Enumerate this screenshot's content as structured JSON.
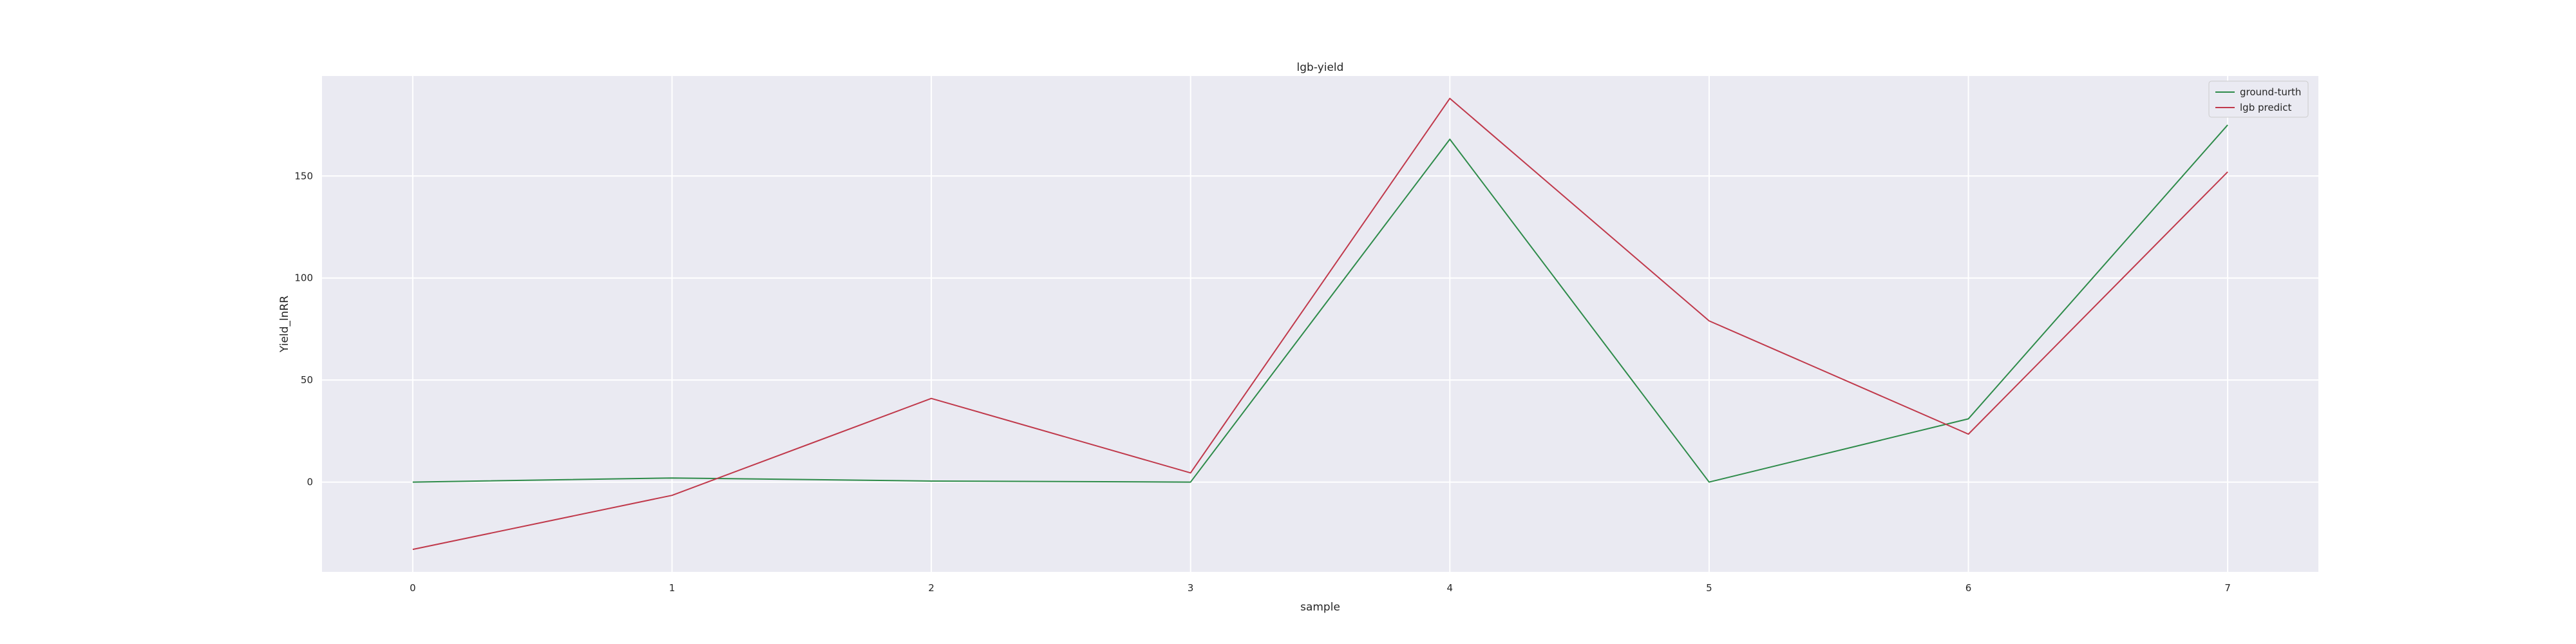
{
  "chart_data": {
    "type": "line",
    "title": "lgb-yield",
    "xlabel": "sample",
    "ylabel": "Yield_lnRR",
    "x": [
      0,
      1,
      2,
      3,
      4,
      5,
      6,
      7
    ],
    "xlim": [
      -0.35,
      7.35
    ],
    "ylim": [
      -44,
      199
    ],
    "xticks": [
      0,
      1,
      2,
      3,
      4,
      5,
      6,
      7
    ],
    "yticks": [
      0,
      50,
      100,
      150
    ],
    "grid": true,
    "legend_position": "top-right",
    "background": "#eaeaf2",
    "series": [
      {
        "name": "ground-turth",
        "color": "#2e8b4a",
        "values": [
          0,
          2,
          0.5,
          0,
          168,
          0,
          31,
          175
        ]
      },
      {
        "name": "lgb predict",
        "color": "#c0394b",
        "values": [
          -33,
          -6.5,
          41,
          4.5,
          188,
          79,
          23.5,
          152
        ]
      }
    ]
  }
}
